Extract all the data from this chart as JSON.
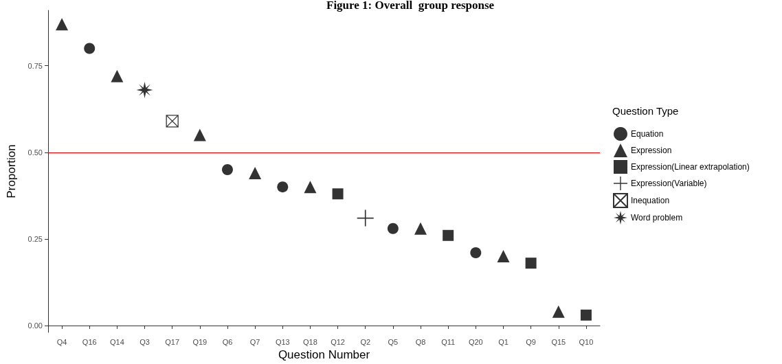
{
  "chart_data": {
    "type": "scatter",
    "title": "Figure 1: Overall  group response",
    "xlabel": "Question Number",
    "ylabel": "Proportion",
    "legend_title": "Question Type",
    "categories": [
      "Q4",
      "Q16",
      "Q14",
      "Q3",
      "Q17",
      "Q19",
      "Q6",
      "Q7",
      "Q13",
      "Q18",
      "Q12",
      "Q2",
      "Q5",
      "Q8",
      "Q11",
      "Q20",
      "Q1",
      "Q9",
      "Q15",
      "Q10"
    ],
    "series": [
      {
        "name": "Equation",
        "color": "#000000",
        "marker": "circle",
        "x": [
          "Q16",
          "Q6",
          "Q13",
          "Q5",
          "Q20"
        ],
        "values": [
          0.8,
          0.45,
          0.4,
          0.28,
          0.21
        ]
      },
      {
        "name": "Expression",
        "color": "#000000",
        "marker": "triangle",
        "x": [
          "Q4",
          "Q14",
          "Q19",
          "Q7",
          "Q18",
          "Q8",
          "Q1",
          "Q15"
        ],
        "values": [
          0.87,
          0.72,
          0.55,
          0.44,
          0.4,
          0.28,
          0.2,
          0.04
        ]
      },
      {
        "name": "Expression(Linear extrapolation)",
        "color": "#000000",
        "marker": "square",
        "x": [
          "Q12",
          "Q11",
          "Q9",
          "Q10"
        ],
        "values": [
          0.38,
          0.26,
          0.18,
          0.03
        ]
      },
      {
        "name": "Expression(Variable)",
        "color": "#000000",
        "marker": "cross",
        "x": [
          "Q2"
        ],
        "values": [
          0.31
        ]
      },
      {
        "name": "Inequation",
        "color": "#000000",
        "x": [
          "Q17"
        ],
        "values": [
          0.59
        ]
      },
      {
        "name": "Word problem",
        "color": "#000000",
        "marker": "star",
        "x": [
          "Q3"
        ],
        "values": [
          0.68
        ]
      }
    ],
    "ylim": [
      -0.02,
      0.91
    ],
    "yticks": [
      {
        "value": 0,
        "label": "0.00"
      },
      0.25,
      {
        "value": 0.5,
        "label": "0.50"
      },
      0.75
    ],
    "ref_lines": [
      {
        "axis": "y",
        "value": 0.5,
        "color": "#ff0000"
      }
    ],
    "grid": false,
    "legend": "right"
  }
}
